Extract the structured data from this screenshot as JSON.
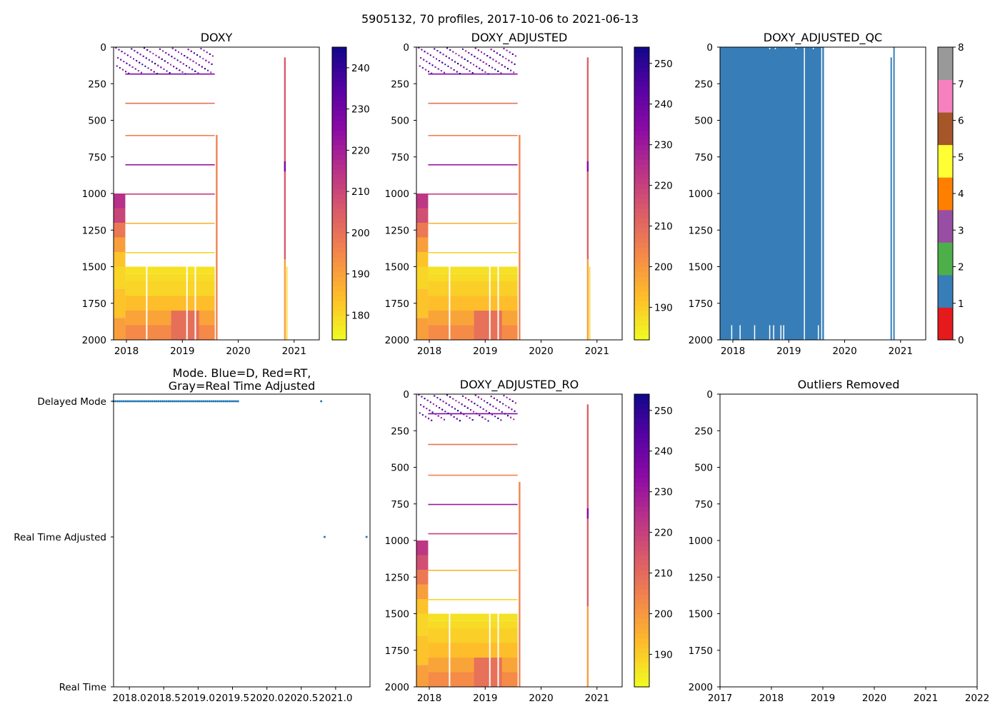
{
  "figure_title": "5905132, 70 profiles, 2017-10-06 to 2021-06-13",
  "chart_data": [
    {
      "id": "doxy",
      "type": "heatmap",
      "title": "DOXY",
      "ylim": [
        2000,
        0
      ],
      "yticks": [
        "0",
        "250",
        "500",
        "750",
        "1000",
        "1250",
        "1500",
        "1750",
        "2000"
      ],
      "xlim": [
        2017.77,
        2021.45
      ],
      "xticks": [
        {
          "v": 2018,
          "label": "2018"
        },
        {
          "v": 2019,
          "label": "2019"
        },
        {
          "v": 2020,
          "label": "2020"
        },
        {
          "v": 2021,
          "label": "2021"
        }
      ],
      "colorbar": {
        "min": 174,
        "max": 245,
        "ticks": [
          {
            "v": 180,
            "label": "180"
          },
          {
            "v": 190,
            "label": "190"
          },
          {
            "v": 200,
            "label": "200"
          },
          {
            "v": 210,
            "label": "210"
          },
          {
            "v": 220,
            "label": "220"
          },
          {
            "v": 230,
            "label": "230"
          },
          {
            "v": 240,
            "label": "240"
          }
        ]
      },
      "cmap": "plasma_r",
      "blocks": [
        {
          "x0": 2017.77,
          "x1": 2017.98,
          "d0": 1000,
          "d1": 1100,
          "v": 215
        },
        {
          "x0": 2017.77,
          "x1": 2017.98,
          "d0": 1100,
          "d1": 1200,
          "v": 210
        },
        {
          "x0": 2017.77,
          "x1": 2017.98,
          "d0": 1200,
          "d1": 1300,
          "v": 198
        },
        {
          "x0": 2017.77,
          "x1": 2017.98,
          "d0": 1300,
          "d1": 1400,
          "v": 190
        },
        {
          "x0": 2017.77,
          "x1": 2017.98,
          "d0": 1400,
          "d1": 1500,
          "v": 183
        },
        {
          "x0": 2017.77,
          "x1": 2017.98,
          "d0": 1500,
          "d1": 1650,
          "v": 180
        },
        {
          "x0": 2017.77,
          "x1": 2017.98,
          "d0": 1650,
          "d1": 1850,
          "v": 183
        },
        {
          "x0": 2017.77,
          "x1": 2017.98,
          "d0": 1850,
          "d1": 2000,
          "v": 190
        },
        {
          "x0": 2017.98,
          "x1": 2019.58,
          "d0": 1500,
          "d1": 1550,
          "v": 178
        },
        {
          "x0": 2017.98,
          "x1": 2019.58,
          "d0": 1550,
          "d1": 1600,
          "v": 179
        },
        {
          "x0": 2017.98,
          "x1": 2019.58,
          "d0": 1600,
          "d1": 1700,
          "v": 180
        },
        {
          "x0": 2017.98,
          "x1": 2019.58,
          "d0": 1700,
          "d1": 1800,
          "v": 184
        },
        {
          "x0": 2017.98,
          "x1": 2019.58,
          "d0": 1800,
          "d1": 1900,
          "v": 189
        },
        {
          "x0": 2017.98,
          "x1": 2019.58,
          "d0": 1900,
          "d1": 2000,
          "v": 194
        },
        {
          "x0": 2018.8,
          "x1": 2019.3,
          "d0": 1800,
          "d1": 2000,
          "v": 200
        },
        {
          "x0": 2019.6,
          "x1": 2019.63,
          "d0": 600,
          "d1": 2000,
          "v": 196
        },
        {
          "x0": 2020.82,
          "x1": 2020.85,
          "d0": 70,
          "d1": 1450,
          "v": 205
        },
        {
          "x0": 2020.82,
          "x1": 2020.85,
          "d0": 780,
          "d1": 850,
          "v": 228
        },
        {
          "x0": 2020.82,
          "x1": 2020.85,
          "d0": 1450,
          "d1": 2000,
          "v": 190
        },
        {
          "x0": 2020.86,
          "x1": 2020.88,
          "d0": 1500,
          "d1": 2000,
          "v": 180
        }
      ],
      "bands": [
        {
          "d": 180,
          "v": 228
        },
        {
          "d": 380,
          "v": 200
        },
        {
          "d": 600,
          "v": 196
        },
        {
          "d": 800,
          "v": 222
        },
        {
          "d": 1000,
          "v": 212
        },
        {
          "d": 1200,
          "v": 186
        },
        {
          "d": 1400,
          "v": 180
        }
      ],
      "gaps": [
        2018.35,
        2019.07,
        2019.22
      ]
    },
    {
      "id": "doxy_adj",
      "type": "heatmap",
      "title": "DOXY_ADJUSTED",
      "ylim": [
        2000,
        0
      ],
      "yticks": [
        "0",
        "250",
        "500",
        "750",
        "1000",
        "1250",
        "1500",
        "1750",
        "2000"
      ],
      "xlim": [
        2017.77,
        2021.45
      ],
      "xticks": [
        {
          "v": 2018,
          "label": "2018"
        },
        {
          "v": 2019,
          "label": "2019"
        },
        {
          "v": 2020,
          "label": "2020"
        },
        {
          "v": 2021,
          "label": "2021"
        }
      ],
      "colorbar": {
        "min": 182,
        "max": 254,
        "ticks": [
          {
            "v": 190,
            "label": "190"
          },
          {
            "v": 200,
            "label": "200"
          },
          {
            "v": 210,
            "label": "210"
          },
          {
            "v": 220,
            "label": "220"
          },
          {
            "v": 230,
            "label": "230"
          },
          {
            "v": 240,
            "label": "240"
          },
          {
            "v": 250,
            "label": "250"
          }
        ]
      },
      "cmap": "plasma_r",
      "blocks": [
        {
          "x0": 2017.77,
          "x1": 2017.98,
          "d0": 1000,
          "d1": 1100,
          "v": 222
        },
        {
          "x0": 2017.77,
          "x1": 2017.98,
          "d0": 1100,
          "d1": 1200,
          "v": 216
        },
        {
          "x0": 2017.77,
          "x1": 2017.98,
          "d0": 1200,
          "d1": 1300,
          "v": 206
        },
        {
          "x0": 2017.77,
          "x1": 2017.98,
          "d0": 1300,
          "d1": 1400,
          "v": 198
        },
        {
          "x0": 2017.77,
          "x1": 2017.98,
          "d0": 1400,
          "d1": 1500,
          "v": 191
        },
        {
          "x0": 2017.77,
          "x1": 2017.98,
          "d0": 1500,
          "d1": 1650,
          "v": 188
        },
        {
          "x0": 2017.77,
          "x1": 2017.98,
          "d0": 1650,
          "d1": 1850,
          "v": 191
        },
        {
          "x0": 2017.77,
          "x1": 2017.98,
          "d0": 1850,
          "d1": 2000,
          "v": 198
        },
        {
          "x0": 2017.98,
          "x1": 2019.58,
          "d0": 1500,
          "d1": 1550,
          "v": 186
        },
        {
          "x0": 2017.98,
          "x1": 2019.58,
          "d0": 1550,
          "d1": 1600,
          "v": 187
        },
        {
          "x0": 2017.98,
          "x1": 2019.58,
          "d0": 1600,
          "d1": 1700,
          "v": 189
        },
        {
          "x0": 2017.98,
          "x1": 2019.58,
          "d0": 1700,
          "d1": 1800,
          "v": 192
        },
        {
          "x0": 2017.98,
          "x1": 2019.58,
          "d0": 1800,
          "d1": 1900,
          "v": 197
        },
        {
          "x0": 2017.98,
          "x1": 2019.58,
          "d0": 1900,
          "d1": 2000,
          "v": 202
        },
        {
          "x0": 2018.8,
          "x1": 2019.3,
          "d0": 1800,
          "d1": 2000,
          "v": 208
        },
        {
          "x0": 2019.6,
          "x1": 2019.63,
          "d0": 600,
          "d1": 2000,
          "v": 204
        },
        {
          "x0": 2020.82,
          "x1": 2020.85,
          "d0": 70,
          "d1": 1450,
          "v": 212
        },
        {
          "x0": 2020.82,
          "x1": 2020.85,
          "d0": 780,
          "d1": 850,
          "v": 235
        },
        {
          "x0": 2020.82,
          "x1": 2020.85,
          "d0": 1450,
          "d1": 2000,
          "v": 198
        },
        {
          "x0": 2020.86,
          "x1": 2020.88,
          "d0": 1500,
          "d1": 2000,
          "v": 188
        }
      ],
      "bands": [
        {
          "d": 180,
          "v": 236
        },
        {
          "d": 380,
          "v": 208
        },
        {
          "d": 600,
          "v": 204
        },
        {
          "d": 800,
          "v": 230
        },
        {
          "d": 1000,
          "v": 220
        },
        {
          "d": 1200,
          "v": 194
        },
        {
          "d": 1400,
          "v": 188
        }
      ],
      "gaps": [
        2018.35,
        2019.07,
        2019.22
      ]
    },
    {
      "id": "qc",
      "type": "heatmap",
      "title": "DOXY_ADJUSTED_QC",
      "ylim": [
        2000,
        0
      ],
      "yticks": [
        "0",
        "250",
        "500",
        "750",
        "1000",
        "1250",
        "1500",
        "1750",
        "2000"
      ],
      "xlim": [
        2017.77,
        2021.45
      ],
      "xticks": [
        {
          "v": 2018,
          "label": "2018"
        },
        {
          "v": 2019,
          "label": "2019"
        },
        {
          "v": 2020,
          "label": "2020"
        },
        {
          "v": 2021,
          "label": "2021"
        }
      ],
      "qc_colorbar": {
        "labels": [
          "0",
          "1",
          "2",
          "3",
          "4",
          "5",
          "6",
          "7",
          "8"
        ],
        "colors": [
          "#e41a1c",
          "#377eb8",
          "#4daf4a",
          "#984ea3",
          "#ff7f00",
          "#ffff33",
          "#a65628",
          "#f781bf",
          "#999999"
        ]
      },
      "fill": {
        "x0": 2017.77,
        "x1": 2019.63,
        "v": 1
      },
      "gaps": [
        2019.27,
        2019.58
      ],
      "bottom_gaps": [
        2017.97,
        2018.12,
        2018.38,
        2018.65,
        2018.72,
        2018.85,
        2018.9,
        2019.52
      ],
      "top_gaps": [
        2018.65,
        2018.75,
        2019.12,
        2019.27,
        2019.43
      ],
      "lines": [
        {
          "x": 2020.82,
          "d0": 70,
          "d1": 2000,
          "v": 1
        },
        {
          "x": 2020.87,
          "d0": 0,
          "d1": 2000,
          "v": 1
        }
      ]
    },
    {
      "id": "mode",
      "type": "scatter",
      "title": "Mode. Blue=D, Red=RT,",
      "title2": "Gray=Real Time Adjusted",
      "xlim": [
        2017.77,
        2021.5
      ],
      "xticks": [
        {
          "v": 2018.0,
          "label": "2018.0"
        },
        {
          "v": 2018.5,
          "label": "2018.5"
        },
        {
          "v": 2019.0,
          "label": "2019.0"
        },
        {
          "v": 2019.5,
          "label": "2019.5"
        },
        {
          "v": 2020.0,
          "label": "2020.0"
        },
        {
          "v": 2020.5,
          "label": "2020.5"
        },
        {
          "v": 2021.0,
          "label": "2021.0"
        }
      ],
      "ycats": [
        "Real Time",
        "Real Time Adjusted",
        "Delayed Mode"
      ],
      "delayed_x": {
        "start": 2017.77,
        "end": 2019.58,
        "n": 62,
        "extra": [
          2020.79
        ]
      },
      "rt_adjusted_x": [
        2020.84,
        2021.45
      ]
    },
    {
      "id": "doxy_ro",
      "type": "heatmap",
      "title": "DOXY_ADJUSTED_RO",
      "ylim": [
        2000,
        0
      ],
      "yticks": [
        "0",
        "250",
        "500",
        "750",
        "1000",
        "1250",
        "1500",
        "1750",
        "2000"
      ],
      "xlim": [
        2017.77,
        2021.45
      ],
      "xticks": [
        {
          "v": 2018,
          "label": "2018"
        },
        {
          "v": 2019,
          "label": "2019"
        },
        {
          "v": 2020,
          "label": "2020"
        },
        {
          "v": 2021,
          "label": "2021"
        }
      ],
      "colorbar": {
        "min": 182,
        "max": 254,
        "ticks": [
          {
            "v": 190,
            "label": "190"
          },
          {
            "v": 200,
            "label": "200"
          },
          {
            "v": 210,
            "label": "210"
          },
          {
            "v": 220,
            "label": "220"
          },
          {
            "v": 230,
            "label": "230"
          },
          {
            "v": 240,
            "label": "240"
          },
          {
            "v": 250,
            "label": "250"
          }
        ]
      },
      "cmap": "plasma_r",
      "blocks": [
        {
          "x0": 2017.77,
          "x1": 2017.98,
          "d0": 1000,
          "d1": 1100,
          "v": 222
        },
        {
          "x0": 2017.77,
          "x1": 2017.98,
          "d0": 1100,
          "d1": 1200,
          "v": 216
        },
        {
          "x0": 2017.77,
          "x1": 2017.98,
          "d0": 1200,
          "d1": 1300,
          "v": 206
        },
        {
          "x0": 2017.77,
          "x1": 2017.98,
          "d0": 1300,
          "d1": 1400,
          "v": 198
        },
        {
          "x0": 2017.77,
          "x1": 2017.98,
          "d0": 1400,
          "d1": 1500,
          "v": 191
        },
        {
          "x0": 2017.77,
          "x1": 2017.98,
          "d0": 1500,
          "d1": 1650,
          "v": 188
        },
        {
          "x0": 2017.77,
          "x1": 2017.98,
          "d0": 1650,
          "d1": 1850,
          "v": 191
        },
        {
          "x0": 2017.77,
          "x1": 2017.98,
          "d0": 1850,
          "d1": 2000,
          "v": 198
        },
        {
          "x0": 2017.98,
          "x1": 2019.58,
          "d0": 1500,
          "d1": 1550,
          "v": 186
        },
        {
          "x0": 2017.98,
          "x1": 2019.58,
          "d0": 1550,
          "d1": 1600,
          "v": 187
        },
        {
          "x0": 2017.98,
          "x1": 2019.58,
          "d0": 1600,
          "d1": 1700,
          "v": 189
        },
        {
          "x0": 2017.98,
          "x1": 2019.58,
          "d0": 1700,
          "d1": 1800,
          "v": 192
        },
        {
          "x0": 2017.98,
          "x1": 2019.58,
          "d0": 1800,
          "d1": 1900,
          "v": 197
        },
        {
          "x0": 2017.98,
          "x1": 2019.58,
          "d0": 1900,
          "d1": 2000,
          "v": 202
        },
        {
          "x0": 2018.8,
          "x1": 2019.3,
          "d0": 1800,
          "d1": 2000,
          "v": 208
        },
        {
          "x0": 2019.6,
          "x1": 2019.63,
          "d0": 600,
          "d1": 2000,
          "v": 204
        },
        {
          "x0": 2020.82,
          "x1": 2020.85,
          "d0": 70,
          "d1": 1450,
          "v": 212
        },
        {
          "x0": 2020.82,
          "x1": 2020.85,
          "d0": 780,
          "d1": 850,
          "v": 235
        },
        {
          "x0": 2020.82,
          "x1": 2020.85,
          "d0": 1450,
          "d1": 2000,
          "v": 198
        }
      ],
      "bands": [
        {
          "d": 130,
          "v": 236
        },
        {
          "d": 340,
          "v": 208
        },
        {
          "d": 550,
          "v": 204
        },
        {
          "d": 750,
          "v": 230
        },
        {
          "d": 950,
          "v": 220
        },
        {
          "d": 1200,
          "v": 194
        },
        {
          "d": 1400,
          "v": 188
        }
      ],
      "gaps": [
        2018.35,
        2019.07,
        2019.22
      ]
    },
    {
      "id": "outliers",
      "type": "scatter",
      "title": "Outliers Removed",
      "ylim": [
        2000,
        0
      ],
      "yticks": [
        "0",
        "250",
        "500",
        "750",
        "1000",
        "1250",
        "1500",
        "1750",
        "2000"
      ],
      "xlim": [
        2017,
        2022
      ],
      "xticks": [
        {
          "v": 2017,
          "label": "2017"
        },
        {
          "v": 2018,
          "label": "2018"
        },
        {
          "v": 2019,
          "label": "2019"
        },
        {
          "v": 2020,
          "label": "2020"
        },
        {
          "v": 2021,
          "label": "2021"
        },
        {
          "v": 2022,
          "label": "2022"
        }
      ],
      "points": []
    }
  ]
}
